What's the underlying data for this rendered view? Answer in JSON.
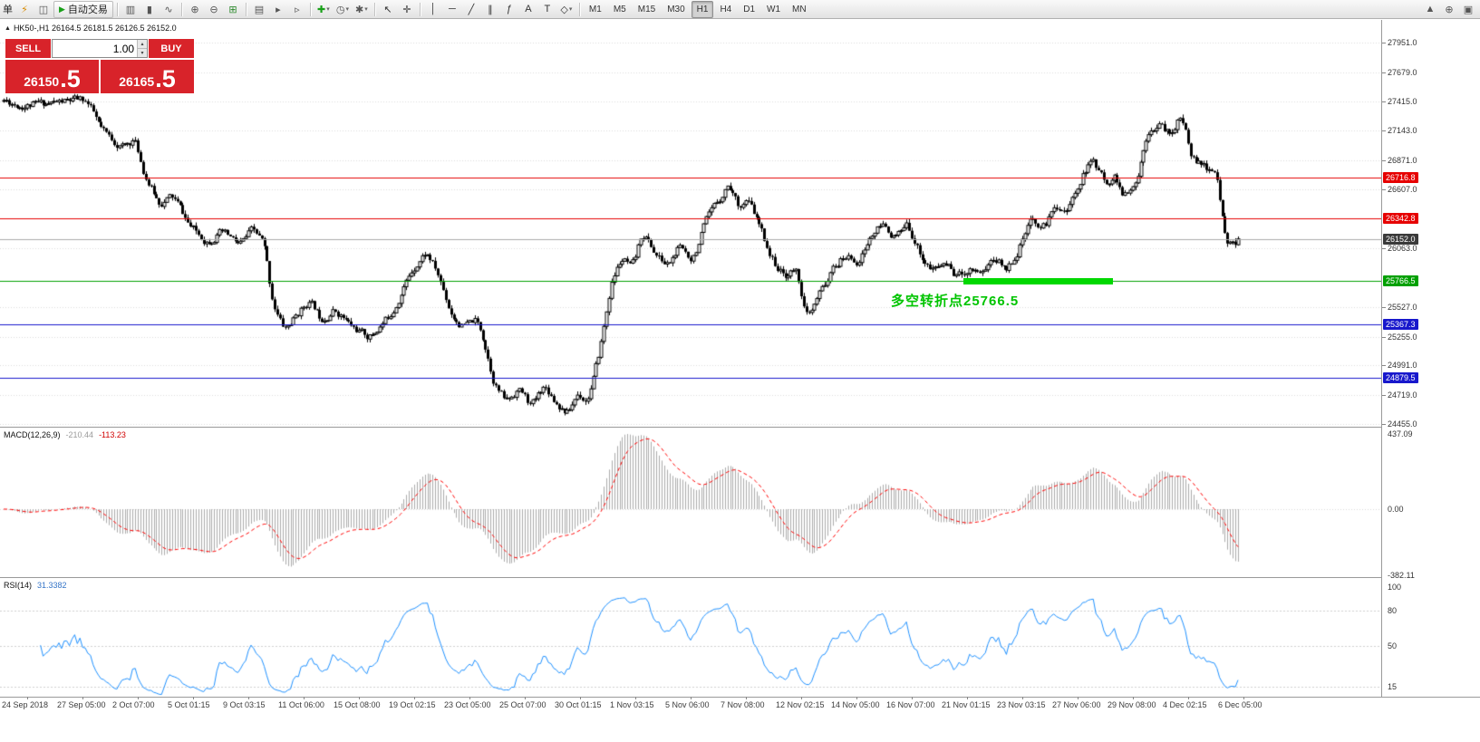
{
  "icons": {
    "collapse": "▲",
    "up": "▴",
    "down": "▾"
  },
  "toolbar": {
    "active_timeframe": "H1",
    "timeframes": [
      "M1",
      "M5",
      "M15",
      "M30",
      "H1",
      "H4",
      "D1",
      "W1",
      "MN"
    ],
    "items": [
      {
        "type": "label",
        "name": "order-label",
        "text": "单"
      },
      {
        "type": "icon",
        "name": "one-click-icon",
        "glyph": "⚡",
        "color": "#d78a00"
      },
      {
        "type": "icon",
        "name": "depth-of-market-icon",
        "glyph": "◫",
        "color": "#555555"
      },
      {
        "type": "button",
        "name": "auto-trading-button",
        "glyph": "▶",
        "glyph_color": "#18a018",
        "label": "自动交易"
      },
      {
        "type": "sep"
      },
      {
        "type": "icon",
        "name": "bar-chart-icon",
        "glyph": "▥",
        "color": "#555555"
      },
      {
        "type": "icon",
        "name": "candlestick-icon",
        "glyph": "▮",
        "color": "#555555"
      },
      {
        "type": "icon",
        "name": "line-chart-icon",
        "glyph": "∿",
        "color": "#555555"
      },
      {
        "type": "sep"
      },
      {
        "type": "icon",
        "name": "zoom-in-icon",
        "glyph": "⊕",
        "color": "#555555"
      },
      {
        "type": "icon",
        "name": "zoom-out-icon",
        "glyph": "⊖",
        "color": "#555555"
      },
      {
        "type": "icon",
        "name": "tile-windows-icon",
        "glyph": "⊞",
        "color": "#2e8b2e"
      },
      {
        "type": "sep"
      },
      {
        "type": "icon",
        "name": "arrange-icon",
        "glyph": "▤",
        "color": "#555555"
      },
      {
        "type": "icon",
        "name": "chart-shift-icon",
        "glyph": "▸",
        "color": "#555555"
      },
      {
        "type": "icon",
        "name": "auto-scroll-icon",
        "glyph": "▹",
        "color": "#555555"
      },
      {
        "type": "sep"
      },
      {
        "type": "icon",
        "name": "indicators-icon",
        "glyph": "✚",
        "color": "#18a018",
        "caret": true
      },
      {
        "type": "icon",
        "name": "periods-icon",
        "glyph": "◷",
        "color": "#555555",
        "caret": true
      },
      {
        "type": "icon",
        "name": "templates-icon",
        "glyph": "✱",
        "color": "#555555",
        "caret": true
      },
      {
        "type": "sep"
      },
      {
        "type": "icon",
        "name": "cursor-icon",
        "glyph": "↖",
        "color": "#333333"
      },
      {
        "type": "icon",
        "name": "crosshair-icon",
        "glyph": "✛",
        "color": "#333333"
      },
      {
        "type": "sep"
      },
      {
        "type": "icon",
        "name": "vertical-line-icon",
        "glyph": "│",
        "color": "#333333"
      },
      {
        "type": "icon",
        "name": "horizontal-line-icon",
        "glyph": "─",
        "color": "#333333"
      },
      {
        "type": "icon",
        "name": "trendline-icon",
        "glyph": "╱",
        "color": "#333333"
      },
      {
        "type": "icon",
        "name": "channel-icon",
        "glyph": "∥",
        "color": "#333333"
      },
      {
        "type": "icon",
        "name": "fibonacci-icon",
        "glyph": "ƒ",
        "color": "#333333"
      },
      {
        "type": "icon",
        "name": "text-icon",
        "glyph": "A",
        "color": "#333333"
      },
      {
        "type": "icon",
        "name": "label-icon",
        "glyph": "T",
        "color": "#333333"
      },
      {
        "type": "icon",
        "name": "shapes-icon",
        "glyph": "◇",
        "color": "#333333",
        "caret": true
      },
      {
        "type": "sep"
      },
      {
        "type": "tf-group"
      },
      {
        "type": "spring"
      },
      {
        "type": "icon",
        "name": "scroll-up-icon",
        "glyph": "▲",
        "color": "#555555"
      },
      {
        "type": "icon",
        "name": "search-icon",
        "glyph": "⊕",
        "color": "#555555"
      },
      {
        "type": "icon",
        "name": "chat-icon",
        "glyph": "▣",
        "color": "#555555"
      }
    ]
  },
  "chart": {
    "header": "HK50-,H1 26164.5 26181.5 26126.5 26152.0"
  },
  "trade_panel": {
    "sell_label": "SELL",
    "buy_label": "BUY",
    "volume": "1.00",
    "bid_int": "26150",
    "bid_frac": ".5",
    "ask_int": "26165",
    "ask_frac": ".5"
  },
  "price_axis": {
    "ticks": [
      {
        "label": "27951.0",
        "price": 27951.0
      },
      {
        "label": "27679.0",
        "price": 27679.0
      },
      {
        "label": "27415.0",
        "price": 27415.0
      },
      {
        "label": "27143.0",
        "price": 27143.0
      },
      {
        "label": "26871.0",
        "price": 26871.0
      },
      {
        "label": "26607.0",
        "price": 26607.0
      },
      {
        "label": "26063.0",
        "price": 26063.0
      },
      {
        "label": "25527.0",
        "price": 25527.0
      },
      {
        "label": "25255.0",
        "price": 25255.0
      },
      {
        "label": "24991.0",
        "price": 24991.0
      },
      {
        "label": "24719.0",
        "price": 24719.0
      },
      {
        "label": "24455.0",
        "price": 24455.0
      }
    ]
  },
  "hlines": [
    {
      "label": "26716.8",
      "price": 26716.8,
      "line_color": "#e60000",
      "box_color": "#e60000"
    },
    {
      "label": "26342.8",
      "price": 26342.8,
      "line_color": "#e60000",
      "box_color": "#e60000"
    },
    {
      "label": "26152.0",
      "price": 26152.0,
      "line_color": "#ababab",
      "box_color": "#3a3a3a"
    },
    {
      "label": "25766.5",
      "price": 25766.5,
      "line_color": "#00a000",
      "box_color": "#00a000"
    },
    {
      "label": "25367.3",
      "price": 25367.3,
      "line_color": "#1818cc",
      "box_color": "#1818cc"
    },
    {
      "label": "24879.5",
      "price": 24879.5,
      "line_color": "#1818cc",
      "box_color": "#1818cc"
    }
  ],
  "annotation": {
    "text": "多空转折点25766.5",
    "color": "#00c400",
    "price": 25766.5
  },
  "macd_panel": {
    "title": "MACD(12,26,9)",
    "value_main": "-210.44",
    "value_signal": "-113.23",
    "axis": [
      {
        "label": "437.09",
        "value": 437.09
      },
      {
        "label": "0.00",
        "value": 0.0
      },
      {
        "label": "-382.11",
        "value": -382.11
      }
    ],
    "max": 437.09,
    "min": -382.11
  },
  "rsi_panel": {
    "title": "RSI(14)",
    "value": "31.3382",
    "axis": [
      {
        "label": "100",
        "value": 100
      },
      {
        "label": "80",
        "value": 80
      },
      {
        "label": "50",
        "value": 50
      },
      {
        "label": "15",
        "value": 15
      }
    ],
    "levels": [
      80,
      50,
      15
    ]
  },
  "time_axis": {
    "labels": [
      "24 Sep 2018",
      "27 Sep 05:00",
      "2 Oct 07:00",
      "5 Oct 01:15",
      "9 Oct 03:15",
      "11 Oct 06:00",
      "15 Oct 08:00",
      "19 Oct 02:15",
      "23 Oct 05:00",
      "25 Oct 07:00",
      "30 Oct 01:15",
      "1 Nov 03:15",
      "5 Nov 06:00",
      "7 Nov 08:00",
      "12 Nov 02:15",
      "14 Nov 05:00",
      "16 Nov 07:00",
      "21 Nov 01:15",
      "23 Nov 03:15",
      "27 Nov 06:00",
      "29 Nov 08:00",
      "4 Dec 02:15",
      "6 Dec 05:00"
    ]
  },
  "chart_data": {
    "type": "candlestick",
    "symbol": "HK50-",
    "timeframe": "H1",
    "title": "HK50-,H1",
    "current": {
      "open": 26164.5,
      "high": 26181.5,
      "low": 26126.5,
      "close": 26152.0,
      "bid": 26150.5,
      "ask": 26165.5
    },
    "y_range": {
      "min": 24455.0,
      "max": 27951.0
    },
    "horizontal_lines": [
      26716.8,
      26342.8,
      26152.0,
      25766.5,
      25367.3,
      24879.5
    ],
    "trend_note": {
      "text": "多空转折点25766.5",
      "price": 25766.5
    },
    "indicators": [
      {
        "name": "MACD",
        "params": [
          12,
          26,
          9
        ],
        "values": [
          -210.44,
          -113.23
        ],
        "axis_range": [
          -382.11,
          437.09
        ]
      },
      {
        "name": "RSI",
        "params": [
          14
        ],
        "value": 31.3382,
        "levels": [
          80,
          50,
          15
        ]
      }
    ],
    "x_labels": [
      "24 Sep 2018",
      "27 Sep 05:00",
      "2 Oct 07:00",
      "5 Oct 01:15",
      "9 Oct 03:15",
      "11 Oct 06:00",
      "15 Oct 08:00",
      "19 Oct 02:15",
      "23 Oct 05:00",
      "25 Oct 07:00",
      "30 Oct 01:15",
      "1 Nov 03:15",
      "5 Nov 06:00",
      "7 Nov 08:00",
      "12 Nov 02:15",
      "14 Nov 05:00",
      "16 Nov 07:00",
      "21 Nov 01:15",
      "23 Nov 03:15",
      "27 Nov 06:00",
      "29 Nov 08:00",
      "4 Dec 02:15",
      "6 Dec 05:00"
    ],
    "price_waypoints": [
      [
        0.0,
        27420
      ],
      [
        0.012,
        27370
      ],
      [
        0.065,
        27430
      ],
      [
        0.078,
        27120
      ],
      [
        0.095,
        26980
      ],
      [
        0.105,
        27080
      ],
      [
        0.112,
        26720
      ],
      [
        0.125,
        26450
      ],
      [
        0.135,
        26560
      ],
      [
        0.15,
        26240
      ],
      [
        0.163,
        26120
      ],
      [
        0.175,
        26220
      ],
      [
        0.19,
        26080
      ],
      [
        0.2,
        26250
      ],
      [
        0.21,
        26080
      ],
      [
        0.216,
        25520
      ],
      [
        0.226,
        25300
      ],
      [
        0.236,
        25460
      ],
      [
        0.246,
        25600
      ],
      [
        0.256,
        25400
      ],
      [
        0.266,
        25520
      ],
      [
        0.28,
        25340
      ],
      [
        0.295,
        25240
      ],
      [
        0.312,
        25470
      ],
      [
        0.33,
        25900
      ],
      [
        0.341,
        26050
      ],
      [
        0.351,
        25790
      ],
      [
        0.361,
        25440
      ],
      [
        0.371,
        25330
      ],
      [
        0.381,
        25420
      ],
      [
        0.387,
        25240
      ],
      [
        0.396,
        24790
      ],
      [
        0.406,
        24640
      ],
      [
        0.416,
        24800
      ],
      [
        0.426,
        24590
      ],
      [
        0.436,
        24840
      ],
      [
        0.446,
        24640
      ],
      [
        0.456,
        24540
      ],
      [
        0.464,
        24780
      ],
      [
        0.471,
        24640
      ],
      [
        0.481,
        25120
      ],
      [
        0.491,
        25820
      ],
      [
        0.5,
        26000
      ],
      [
        0.508,
        25840
      ],
      [
        0.516,
        26260
      ],
      [
        0.526,
        26000
      ],
      [
        0.536,
        25890
      ],
      [
        0.546,
        26090
      ],
      [
        0.556,
        25950
      ],
      [
        0.566,
        26290
      ],
      [
        0.576,
        26480
      ],
      [
        0.586,
        26690
      ],
      [
        0.594,
        26420
      ],
      [
        0.601,
        26520
      ],
      [
        0.611,
        26240
      ],
      [
        0.621,
        25940
      ],
      [
        0.631,
        25790
      ],
      [
        0.641,
        25900
      ],
      [
        0.649,
        25340
      ],
      [
        0.661,
        25700
      ],
      [
        0.671,
        25900
      ],
      [
        0.681,
        26000
      ],
      [
        0.691,
        25940
      ],
      [
        0.701,
        26190
      ],
      [
        0.711,
        26290
      ],
      [
        0.721,
        26140
      ],
      [
        0.731,
        26290
      ],
      [
        0.741,
        25990
      ],
      [
        0.751,
        25840
      ],
      [
        0.761,
        25950
      ],
      [
        0.771,
        25790
      ],
      [
        0.781,
        25900
      ],
      [
        0.791,
        25850
      ],
      [
        0.801,
        26000
      ],
      [
        0.811,
        25850
      ],
      [
        0.821,
        26090
      ],
      [
        0.831,
        26340
      ],
      [
        0.841,
        26240
      ],
      [
        0.851,
        26490
      ],
      [
        0.861,
        26400
      ],
      [
        0.871,
        26740
      ],
      [
        0.881,
        26890
      ],
      [
        0.891,
        26640
      ],
      [
        0.899,
        26760
      ],
      [
        0.906,
        26500
      ],
      [
        0.916,
        26650
      ],
      [
        0.926,
        27240
      ],
      [
        0.936,
        27190
      ],
      [
        0.944,
        27090
      ],
      [
        0.951,
        27290
      ],
      [
        0.956,
        27140
      ],
      [
        0.961,
        26860
      ],
      [
        0.971,
        26800
      ],
      [
        0.981,
        26740
      ],
      [
        0.986,
        26280
      ],
      [
        0.991,
        26040
      ],
      [
        1.0,
        26152
      ]
    ],
    "render": {
      "candles": 470,
      "seed": 11,
      "noise": 70,
      "wick": 34
    }
  }
}
